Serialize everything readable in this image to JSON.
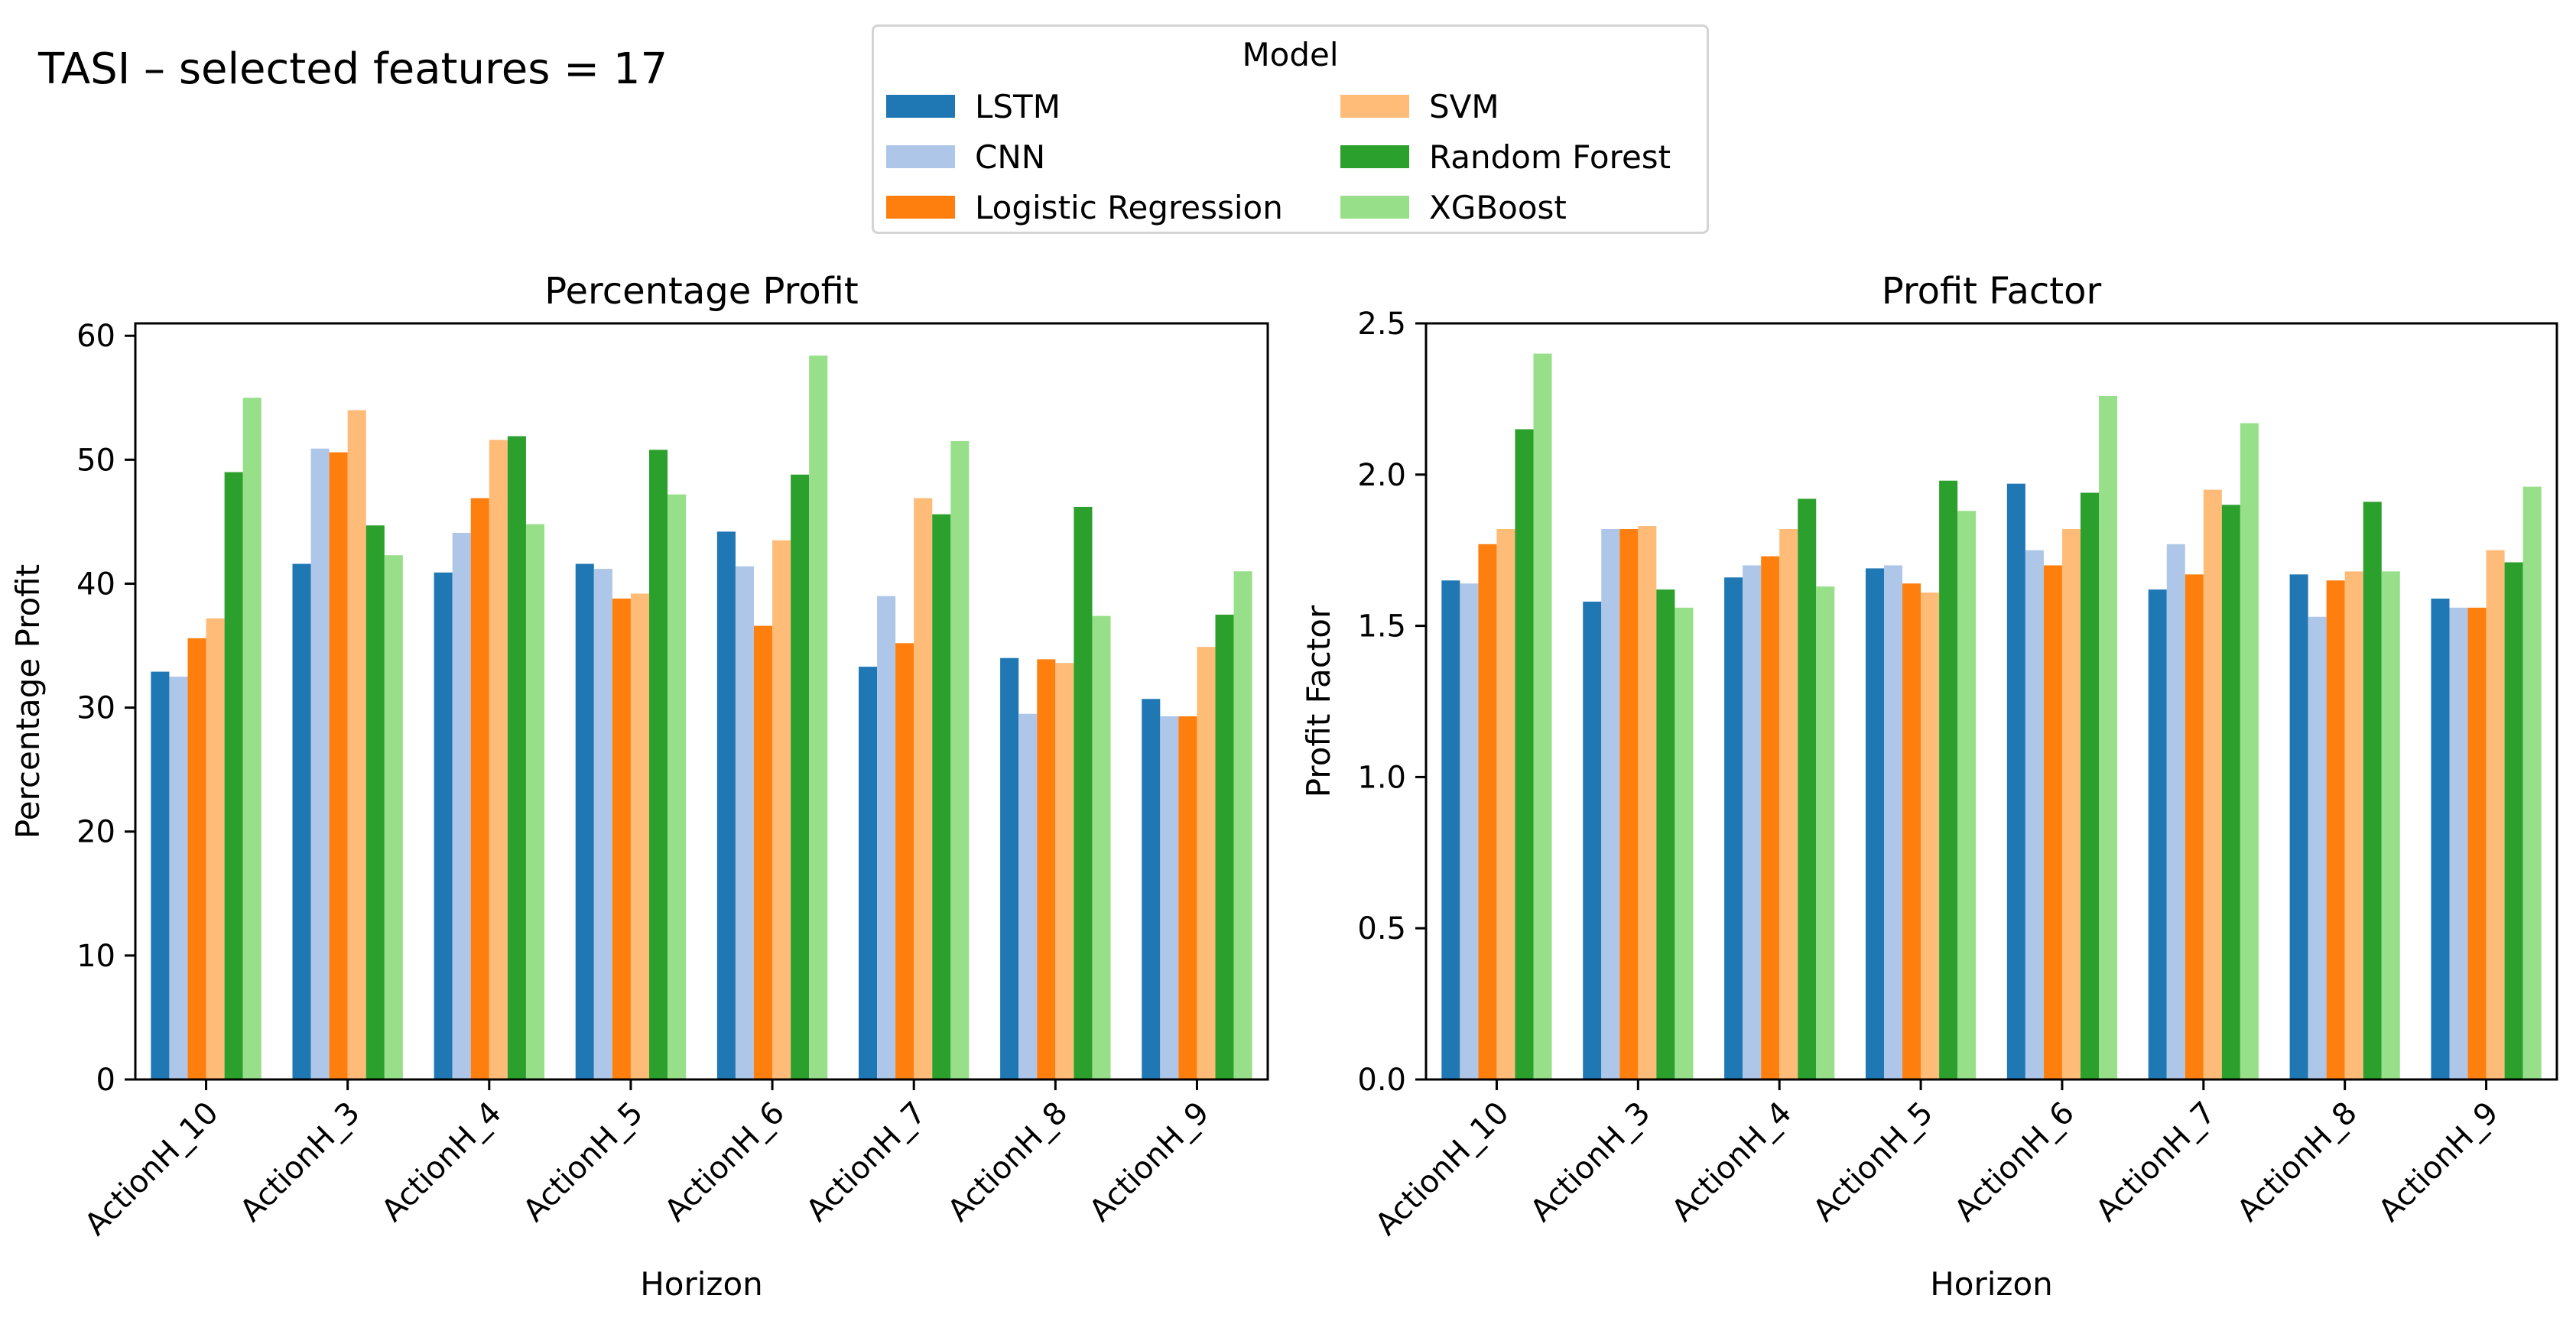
{
  "figure": {
    "title": "TASI – selected features = 17"
  },
  "legend": {
    "title": "Model",
    "items": [
      {
        "label": "LSTM",
        "color": "#1f77b4"
      },
      {
        "label": "CNN",
        "color": "#aec7e8"
      },
      {
        "label": "Logistic Regression",
        "color": "#ff7f0e"
      },
      {
        "label": "SVM",
        "color": "#ffbb78"
      },
      {
        "label": "Random Forest",
        "color": "#2ca02c"
      },
      {
        "label": "XGBoost",
        "color": "#98df8a"
      }
    ]
  },
  "chart_data": [
    {
      "type": "bar",
      "title": "Percentage Profit",
      "xlabel": "Horizon",
      "ylabel": "Percentage Profit",
      "ylim": [
        0,
        61
      ],
      "yticks": [
        0,
        10,
        20,
        30,
        40,
        50,
        60
      ],
      "ytick_labels": [
        "0",
        "10",
        "20",
        "30",
        "40",
        "50",
        "60"
      ],
      "categories": [
        "ActionH_10",
        "ActionH_3",
        "ActionH_4",
        "ActionH_5",
        "ActionH_6",
        "ActionH_7",
        "ActionH_8",
        "ActionH_9"
      ],
      "series": [
        {
          "name": "LSTM",
          "values": [
            32.9,
            41.6,
            40.9,
            41.6,
            44.2,
            33.3,
            34.0,
            30.7
          ]
        },
        {
          "name": "CNN",
          "values": [
            32.5,
            50.9,
            44.1,
            41.2,
            41.4,
            39.0,
            29.5,
            29.3
          ]
        },
        {
          "name": "Logistic Regression",
          "values": [
            35.6,
            50.6,
            46.9,
            38.8,
            36.6,
            35.2,
            33.9,
            29.3
          ]
        },
        {
          "name": "SVM",
          "values": [
            37.2,
            54.0,
            51.6,
            39.2,
            43.5,
            46.9,
            33.6,
            34.9
          ]
        },
        {
          "name": "Random Forest",
          "values": [
            49.0,
            44.7,
            51.9,
            50.8,
            48.8,
            45.6,
            46.2,
            37.5
          ]
        },
        {
          "name": "XGBoost",
          "values": [
            55.0,
            42.3,
            44.8,
            47.2,
            58.4,
            51.5,
            37.4,
            41.0
          ]
        }
      ]
    },
    {
      "type": "bar",
      "title": "Profit Factor",
      "xlabel": "Horizon",
      "ylabel": "Profit Factor",
      "ylim": [
        0,
        2.5
      ],
      "yticks": [
        0,
        0.5,
        1.0,
        1.5,
        2.0,
        2.5
      ],
      "ytick_labels": [
        "0.0",
        "0.5",
        "1.0",
        "1.5",
        "2.0",
        "2.5"
      ],
      "categories": [
        "ActionH_10",
        "ActionH_3",
        "ActionH_4",
        "ActionH_5",
        "ActionH_6",
        "ActionH_7",
        "ActionH_8",
        "ActionH_9"
      ],
      "series": [
        {
          "name": "LSTM",
          "values": [
            1.65,
            1.58,
            1.66,
            1.69,
            1.97,
            1.62,
            1.67,
            1.59
          ]
        },
        {
          "name": "CNN",
          "values": [
            1.64,
            1.82,
            1.7,
            1.7,
            1.75,
            1.77,
            1.53,
            1.56
          ]
        },
        {
          "name": "Logistic Regression",
          "values": [
            1.77,
            1.82,
            1.73,
            1.64,
            1.7,
            1.67,
            1.65,
            1.56
          ]
        },
        {
          "name": "SVM",
          "values": [
            1.82,
            1.83,
            1.82,
            1.61,
            1.82,
            1.95,
            1.68,
            1.75
          ]
        },
        {
          "name": "Random Forest",
          "values": [
            2.15,
            1.62,
            1.92,
            1.98,
            1.94,
            1.9,
            1.91,
            1.71
          ]
        },
        {
          "name": "XGBoost",
          "values": [
            2.4,
            1.56,
            1.63,
            1.88,
            2.26,
            2.17,
            1.68,
            1.96
          ]
        }
      ]
    }
  ]
}
